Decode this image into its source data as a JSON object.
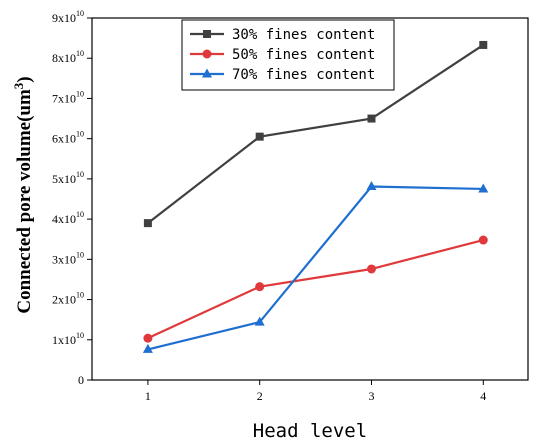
{
  "chart_data": {
    "type": "line",
    "x": [
      1,
      2,
      3,
      4
    ],
    "x_tick_labels": [
      "1",
      "2",
      "3",
      "4"
    ],
    "y_tick_labels": [
      "0",
      "1x10",
      "2x10",
      "3x10",
      "4x10",
      "5x10",
      "6x10",
      "7x10",
      "8x10",
      "9x10"
    ],
    "y_tick_exponent": "10",
    "xlabel": "Head level",
    "ylabel": "Connected pore volume(um",
    "ylabel_superscript": "3",
    "ylabel_suffix": ")",
    "xlim": [
      0.5,
      4.4
    ],
    "ylim": [
      0,
      90000000000
    ],
    "grid": false,
    "legend_position": "top-center",
    "series": [
      {
        "name": "30% fines content",
        "values": [
          39000000000,
          60500000000,
          65000000000,
          83300000000
        ],
        "color": "#404040",
        "marker": "square"
      },
      {
        "name": "50% fines content",
        "values": [
          10400000000,
          23200000000,
          27600000000,
          34800000000
        ],
        "color": "#e0393b",
        "marker": "circle"
      },
      {
        "name": "70% fines content",
        "values": [
          7600000000,
          14400000000,
          48100000000,
          47500000000
        ],
        "color": "#1f6fd1",
        "marker": "triangle"
      }
    ]
  }
}
